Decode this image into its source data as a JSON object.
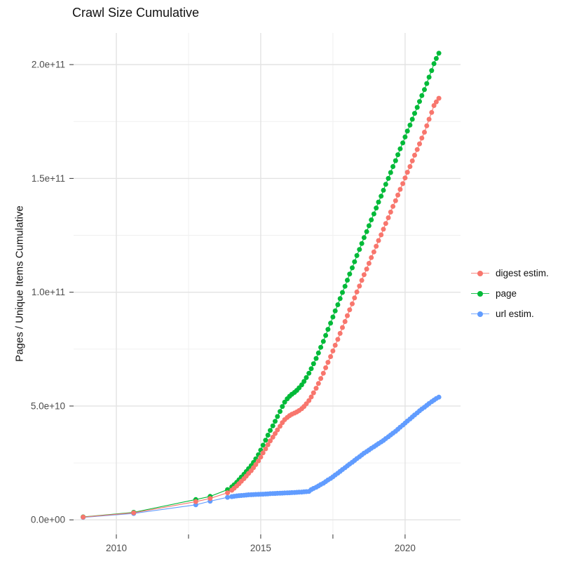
{
  "chart": {
    "x_tick_labels": [
      "2010",
      "2015",
      "2020"
    ],
    "y_tick_labels": [
      "0.0e+00",
      "5.0e+10",
      "1.0e+11",
      "1.5e+11",
      "2.0e+11"
    ]
  },
  "chart_data": {
    "type": "scatter",
    "title": "Crawl Size Cumulative",
    "xlabel": "",
    "ylabel": "Pages / Unique Items Cumulative",
    "legend_position": "right",
    "grid": true,
    "x_unit": "year",
    "value_unit": "items, in billions (1e9); y tick labels shown in scientific notation",
    "xlim": [
      2008.52,
      2021.92
    ],
    "ylim_e9": [
      -6.4,
      213.9
    ],
    "x_major_ticks": [
      2010,
      2015,
      2020
    ],
    "x_minor_ticks": [
      2012.5,
      2017.5
    ],
    "y_major_ticks_e9": [
      0,
      50,
      100,
      150,
      200
    ],
    "y_minor_ticks_e9": [
      25,
      75,
      125,
      175
    ],
    "tick_color": "#333333",
    "grid_major_color": "#e3e3e3",
    "grid_minor_color": "#f0f0f0",
    "text_color": "#4d4d4d",
    "series": [
      {
        "name": "digest estim.",
        "color": "#F8766D",
        "points": [
          [
            2008.85,
            1.2
          ],
          [
            2010.6,
            3.1
          ],
          [
            2012.75,
            8.0
          ],
          [
            2013.25,
            9.4
          ],
          [
            2013.85,
            11.9
          ],
          [
            2014.0,
            13.0
          ],
          [
            2014.08,
            13.9
          ],
          [
            2014.17,
            14.9
          ],
          [
            2014.25,
            15.9
          ],
          [
            2014.33,
            17.0
          ],
          [
            2014.42,
            18.1
          ],
          [
            2014.5,
            19.2
          ],
          [
            2014.58,
            20.4
          ],
          [
            2014.67,
            21.6
          ],
          [
            2014.75,
            22.9
          ],
          [
            2014.83,
            24.3
          ],
          [
            2014.92,
            25.9
          ],
          [
            2015.0,
            27.6
          ],
          [
            2015.08,
            29.4
          ],
          [
            2015.17,
            31.2
          ],
          [
            2015.25,
            33.0
          ],
          [
            2015.33,
            34.7
          ],
          [
            2015.42,
            36.3
          ],
          [
            2015.5,
            37.9
          ],
          [
            2015.58,
            39.5
          ],
          [
            2015.67,
            41.1
          ],
          [
            2015.75,
            42.7
          ],
          [
            2015.83,
            44.0
          ],
          [
            2015.92,
            45.0
          ],
          [
            2016.0,
            45.8
          ],
          [
            2016.08,
            46.4
          ],
          [
            2016.17,
            46.9
          ],
          [
            2016.25,
            47.4
          ],
          [
            2016.33,
            48.0
          ],
          [
            2016.42,
            48.8
          ],
          [
            2016.5,
            49.8
          ],
          [
            2016.58,
            51.0
          ],
          [
            2016.67,
            52.4
          ],
          [
            2016.75,
            54.0
          ],
          [
            2016.83,
            55.8
          ],
          [
            2016.92,
            57.8
          ],
          [
            2017.0,
            59.9
          ],
          [
            2017.08,
            62.1
          ],
          [
            2017.17,
            64.4
          ],
          [
            2017.25,
            66.8
          ],
          [
            2017.33,
            69.2
          ],
          [
            2017.42,
            71.7
          ],
          [
            2017.5,
            74.2
          ],
          [
            2017.58,
            76.7
          ],
          [
            2017.67,
            79.3
          ],
          [
            2017.75,
            81.9
          ],
          [
            2017.83,
            84.5
          ],
          [
            2017.92,
            87.1
          ],
          [
            2018.0,
            89.7
          ],
          [
            2018.08,
            92.3
          ],
          [
            2018.17,
            94.9
          ],
          [
            2018.25,
            97.5
          ],
          [
            2018.33,
            100.1
          ],
          [
            2018.42,
            102.7
          ],
          [
            2018.5,
            105.2
          ],
          [
            2018.58,
            107.7
          ],
          [
            2018.67,
            110.2
          ],
          [
            2018.75,
            112.7
          ],
          [
            2018.83,
            115.2
          ],
          [
            2018.92,
            117.7
          ],
          [
            2019.0,
            120.2
          ],
          [
            2019.08,
            122.7
          ],
          [
            2019.17,
            125.2
          ],
          [
            2019.25,
            127.7
          ],
          [
            2019.33,
            130.2
          ],
          [
            2019.42,
            132.7
          ],
          [
            2019.5,
            135.2
          ],
          [
            2019.58,
            137.7
          ],
          [
            2019.67,
            140.2
          ],
          [
            2019.75,
            142.7
          ],
          [
            2019.83,
            145.2
          ],
          [
            2019.92,
            147.7
          ],
          [
            2020.0,
            150.2
          ],
          [
            2020.08,
            152.7
          ],
          [
            2020.17,
            155.2
          ],
          [
            2020.25,
            157.7
          ],
          [
            2020.33,
            160.2
          ],
          [
            2020.42,
            162.7
          ],
          [
            2020.5,
            165.2
          ],
          [
            2020.58,
            167.7
          ],
          [
            2020.67,
            170.3
          ],
          [
            2020.75,
            173.1
          ],
          [
            2020.83,
            176.0
          ],
          [
            2020.92,
            179.0
          ],
          [
            2021.0,
            182.0
          ],
          [
            2021.08,
            183.6
          ],
          [
            2021.17,
            185.2
          ]
        ]
      },
      {
        "name": "page",
        "color": "#00BA38",
        "points": [
          [
            2008.85,
            1.3
          ],
          [
            2010.6,
            3.3
          ],
          [
            2012.75,
            8.9
          ],
          [
            2013.25,
            10.3
          ],
          [
            2013.85,
            13.3
          ],
          [
            2014.0,
            14.5
          ],
          [
            2014.08,
            15.4
          ],
          [
            2014.17,
            16.5
          ],
          [
            2014.25,
            17.6
          ],
          [
            2014.33,
            18.8
          ],
          [
            2014.42,
            20.0
          ],
          [
            2014.5,
            21.2
          ],
          [
            2014.58,
            22.5
          ],
          [
            2014.67,
            23.8
          ],
          [
            2014.75,
            25.2
          ],
          [
            2014.83,
            26.8
          ],
          [
            2014.92,
            28.6
          ],
          [
            2015.0,
            30.6
          ],
          [
            2015.08,
            32.8
          ],
          [
            2015.17,
            35.0
          ],
          [
            2015.25,
            37.2
          ],
          [
            2015.33,
            39.3
          ],
          [
            2015.42,
            41.3
          ],
          [
            2015.5,
            43.3
          ],
          [
            2015.58,
            45.4
          ],
          [
            2015.67,
            47.6
          ],
          [
            2015.75,
            49.8
          ],
          [
            2015.83,
            51.7
          ],
          [
            2015.92,
            53.2
          ],
          [
            2016.0,
            54.3
          ],
          [
            2016.08,
            55.2
          ],
          [
            2016.17,
            56.0
          ],
          [
            2016.25,
            56.9
          ],
          [
            2016.33,
            58.0
          ],
          [
            2016.42,
            59.3
          ],
          [
            2016.5,
            60.8
          ],
          [
            2016.58,
            62.5
          ],
          [
            2016.67,
            64.4
          ],
          [
            2016.75,
            66.4
          ],
          [
            2016.83,
            68.6
          ],
          [
            2016.92,
            70.9
          ],
          [
            2017.0,
            73.3
          ],
          [
            2017.08,
            75.8
          ],
          [
            2017.17,
            78.4
          ],
          [
            2017.25,
            81.0
          ],
          [
            2017.33,
            83.7
          ],
          [
            2017.42,
            86.4
          ],
          [
            2017.5,
            89.1
          ],
          [
            2017.58,
            91.8
          ],
          [
            2017.67,
            94.5
          ],
          [
            2017.75,
            97.2
          ],
          [
            2017.83,
            99.9
          ],
          [
            2017.92,
            102.6
          ],
          [
            2018.0,
            105.3
          ],
          [
            2018.08,
            108.0
          ],
          [
            2018.17,
            110.7
          ],
          [
            2018.25,
            113.4
          ],
          [
            2018.33,
            116.1
          ],
          [
            2018.42,
            118.8
          ],
          [
            2018.5,
            121.4
          ],
          [
            2018.58,
            124.0
          ],
          [
            2018.67,
            126.6
          ],
          [
            2018.75,
            129.2
          ],
          [
            2018.83,
            131.8
          ],
          [
            2018.92,
            134.4
          ],
          [
            2019.0,
            137.0
          ],
          [
            2019.08,
            139.6
          ],
          [
            2019.17,
            142.2
          ],
          [
            2019.25,
            144.8
          ],
          [
            2019.33,
            147.4
          ],
          [
            2019.42,
            150.0
          ],
          [
            2019.5,
            152.6
          ],
          [
            2019.58,
            155.2
          ],
          [
            2019.67,
            157.8
          ],
          [
            2019.75,
            160.4
          ],
          [
            2019.83,
            163.0
          ],
          [
            2019.92,
            165.6
          ],
          [
            2020.0,
            168.2
          ],
          [
            2020.08,
            170.8
          ],
          [
            2020.17,
            173.4
          ],
          [
            2020.25,
            176.0
          ],
          [
            2020.33,
            178.6
          ],
          [
            2020.42,
            181.2
          ],
          [
            2020.5,
            183.8
          ],
          [
            2020.58,
            186.4
          ],
          [
            2020.67,
            189.0
          ],
          [
            2020.75,
            191.7
          ],
          [
            2020.83,
            194.5
          ],
          [
            2020.92,
            197.4
          ],
          [
            2021.0,
            200.4
          ],
          [
            2021.08,
            202.7
          ],
          [
            2021.17,
            205.0
          ]
        ]
      },
      {
        "name": "url estim.",
        "color": "#619CFF",
        "points": [
          [
            2008.85,
            1.1
          ],
          [
            2010.6,
            2.8
          ],
          [
            2012.75,
            6.6
          ],
          [
            2013.25,
            8.2
          ],
          [
            2013.85,
            9.9
          ],
          [
            2014.0,
            10.2
          ],
          [
            2014.08,
            10.35
          ],
          [
            2014.17,
            10.5
          ],
          [
            2014.25,
            10.6
          ],
          [
            2014.33,
            10.7
          ],
          [
            2014.42,
            10.8
          ],
          [
            2014.5,
            10.9
          ],
          [
            2014.58,
            11.0
          ],
          [
            2014.67,
            11.05
          ],
          [
            2014.75,
            11.1
          ],
          [
            2014.83,
            11.15
          ],
          [
            2014.92,
            11.2
          ],
          [
            2015.0,
            11.25
          ],
          [
            2015.08,
            11.3
          ],
          [
            2015.17,
            11.35
          ],
          [
            2015.25,
            11.4
          ],
          [
            2015.33,
            11.5
          ],
          [
            2015.42,
            11.55
          ],
          [
            2015.5,
            11.6
          ],
          [
            2015.58,
            11.65
          ],
          [
            2015.67,
            11.7
          ],
          [
            2015.75,
            11.75
          ],
          [
            2015.83,
            11.8
          ],
          [
            2015.92,
            11.85
          ],
          [
            2016.0,
            11.9
          ],
          [
            2016.08,
            11.95
          ],
          [
            2016.17,
            12.0
          ],
          [
            2016.25,
            12.1
          ],
          [
            2016.33,
            12.15
          ],
          [
            2016.42,
            12.2
          ],
          [
            2016.5,
            12.3
          ],
          [
            2016.58,
            12.4
          ],
          [
            2016.67,
            12.5
          ],
          [
            2016.75,
            13.3
          ],
          [
            2016.83,
            13.8
          ],
          [
            2016.92,
            14.3
          ],
          [
            2017.0,
            14.9
          ],
          [
            2017.08,
            15.5
          ],
          [
            2017.17,
            16.1
          ],
          [
            2017.25,
            16.8
          ],
          [
            2017.33,
            17.5
          ],
          [
            2017.42,
            18.2
          ],
          [
            2017.5,
            18.9
          ],
          [
            2017.58,
            19.7
          ],
          [
            2017.67,
            20.5
          ],
          [
            2017.75,
            21.3
          ],
          [
            2017.83,
            22.1
          ],
          [
            2017.92,
            22.9
          ],
          [
            2018.0,
            23.7
          ],
          [
            2018.08,
            24.5
          ],
          [
            2018.17,
            25.3
          ],
          [
            2018.25,
            26.1
          ],
          [
            2018.33,
            26.9
          ],
          [
            2018.42,
            27.7
          ],
          [
            2018.5,
            28.5
          ],
          [
            2018.58,
            29.3
          ],
          [
            2018.67,
            30.0
          ],
          [
            2018.75,
            30.7
          ],
          [
            2018.83,
            31.4
          ],
          [
            2018.92,
            32.1
          ],
          [
            2019.0,
            32.8
          ],
          [
            2019.08,
            33.5
          ],
          [
            2019.17,
            34.2
          ],
          [
            2019.25,
            34.9
          ],
          [
            2019.33,
            35.7
          ],
          [
            2019.42,
            36.5
          ],
          [
            2019.5,
            37.3
          ],
          [
            2019.58,
            38.1
          ],
          [
            2019.67,
            38.9
          ],
          [
            2019.75,
            39.8
          ],
          [
            2019.83,
            40.7
          ],
          [
            2019.92,
            41.6
          ],
          [
            2020.0,
            42.5
          ],
          [
            2020.08,
            43.4
          ],
          [
            2020.17,
            44.3
          ],
          [
            2020.25,
            45.2
          ],
          [
            2020.33,
            46.1
          ],
          [
            2020.42,
            47.0
          ],
          [
            2020.5,
            47.9
          ],
          [
            2020.58,
            48.7
          ],
          [
            2020.67,
            49.5
          ],
          [
            2020.75,
            50.3
          ],
          [
            2020.83,
            51.1
          ],
          [
            2020.92,
            51.9
          ],
          [
            2021.0,
            52.6
          ],
          [
            2021.08,
            53.3
          ],
          [
            2021.17,
            53.9
          ]
        ]
      }
    ]
  }
}
